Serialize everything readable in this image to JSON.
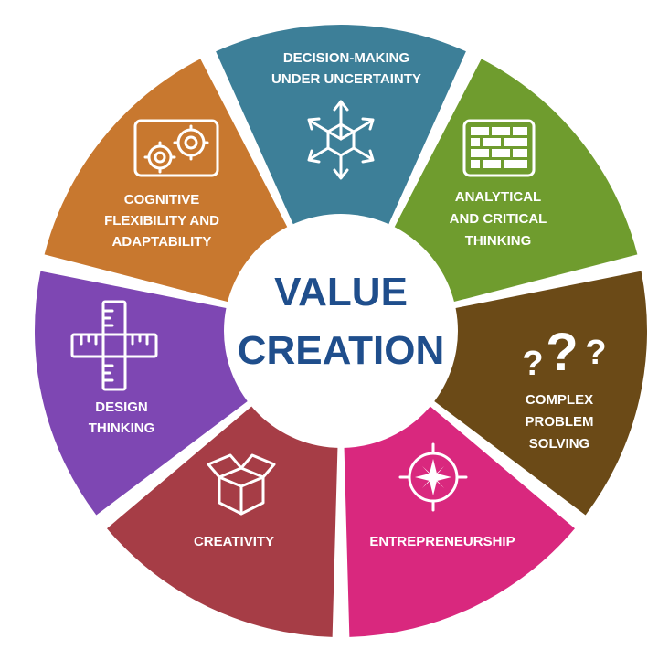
{
  "diagram": {
    "center": {
      "lines": [
        "VALUE",
        "CREATION"
      ],
      "color": "#1f4e8c",
      "background": "#ffffff"
    },
    "segments": [
      {
        "id": "decision",
        "lines": [
          "DECISION-MAKING",
          "UNDER UNCERTAINTY"
        ],
        "color": "#3d7f98",
        "icon": "arrows-cube-icon"
      },
      {
        "id": "analytical",
        "lines": [
          "ANALYTICAL",
          "AND CRITICAL",
          "THINKING"
        ],
        "color": "#6f9c2e",
        "icon": "brick-grid-icon"
      },
      {
        "id": "complex",
        "lines": [
          "COMPLEX",
          "PROBLEM",
          "SOLVING"
        ],
        "color": "#6b4a17",
        "icon": "question-marks-icon"
      },
      {
        "id": "entrepreneurship",
        "lines": [
          "ENTREPRENEURSHIP"
        ],
        "color": "#d9287e",
        "icon": "compass-star-icon"
      },
      {
        "id": "creativity",
        "lines": [
          "CREATIVITY"
        ],
        "color": "#a63d46",
        "icon": "open-box-icon"
      },
      {
        "id": "design",
        "lines": [
          "DESIGN",
          "THINKING"
        ],
        "color": "#7e47b3",
        "icon": "ruler-cross-icon"
      },
      {
        "id": "cognitive",
        "lines": [
          "COGNITIVE",
          "FLEXIBILITY AND",
          "ADAPTABILITY"
        ],
        "color": "#c8782f",
        "icon": "gears-icon"
      }
    ]
  }
}
